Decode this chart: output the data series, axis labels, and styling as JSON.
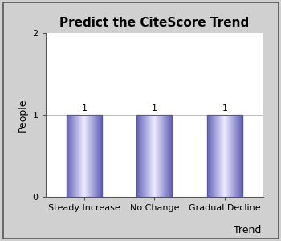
{
  "title": "Predict the CiteScore Trend",
  "categories": [
    "Steady Increase",
    "No Change",
    "Gradual Decline"
  ],
  "values": [
    1,
    1,
    1
  ],
  "ylabel": "People",
  "xlabel": "Trend",
  "ylim": [
    0,
    2
  ],
  "yticks": [
    0,
    1,
    2
  ],
  "background_color": "#d0d0d0",
  "plot_bg_color": "#ffffff",
  "border_color": "#444444",
  "title_fontsize": 11,
  "label_fontsize": 9,
  "tick_fontsize": 8,
  "annotation_fontsize": 8,
  "grid_color": "#bbbbbb",
  "bar_edge_color": "#5555aa",
  "bar_width": 0.5
}
